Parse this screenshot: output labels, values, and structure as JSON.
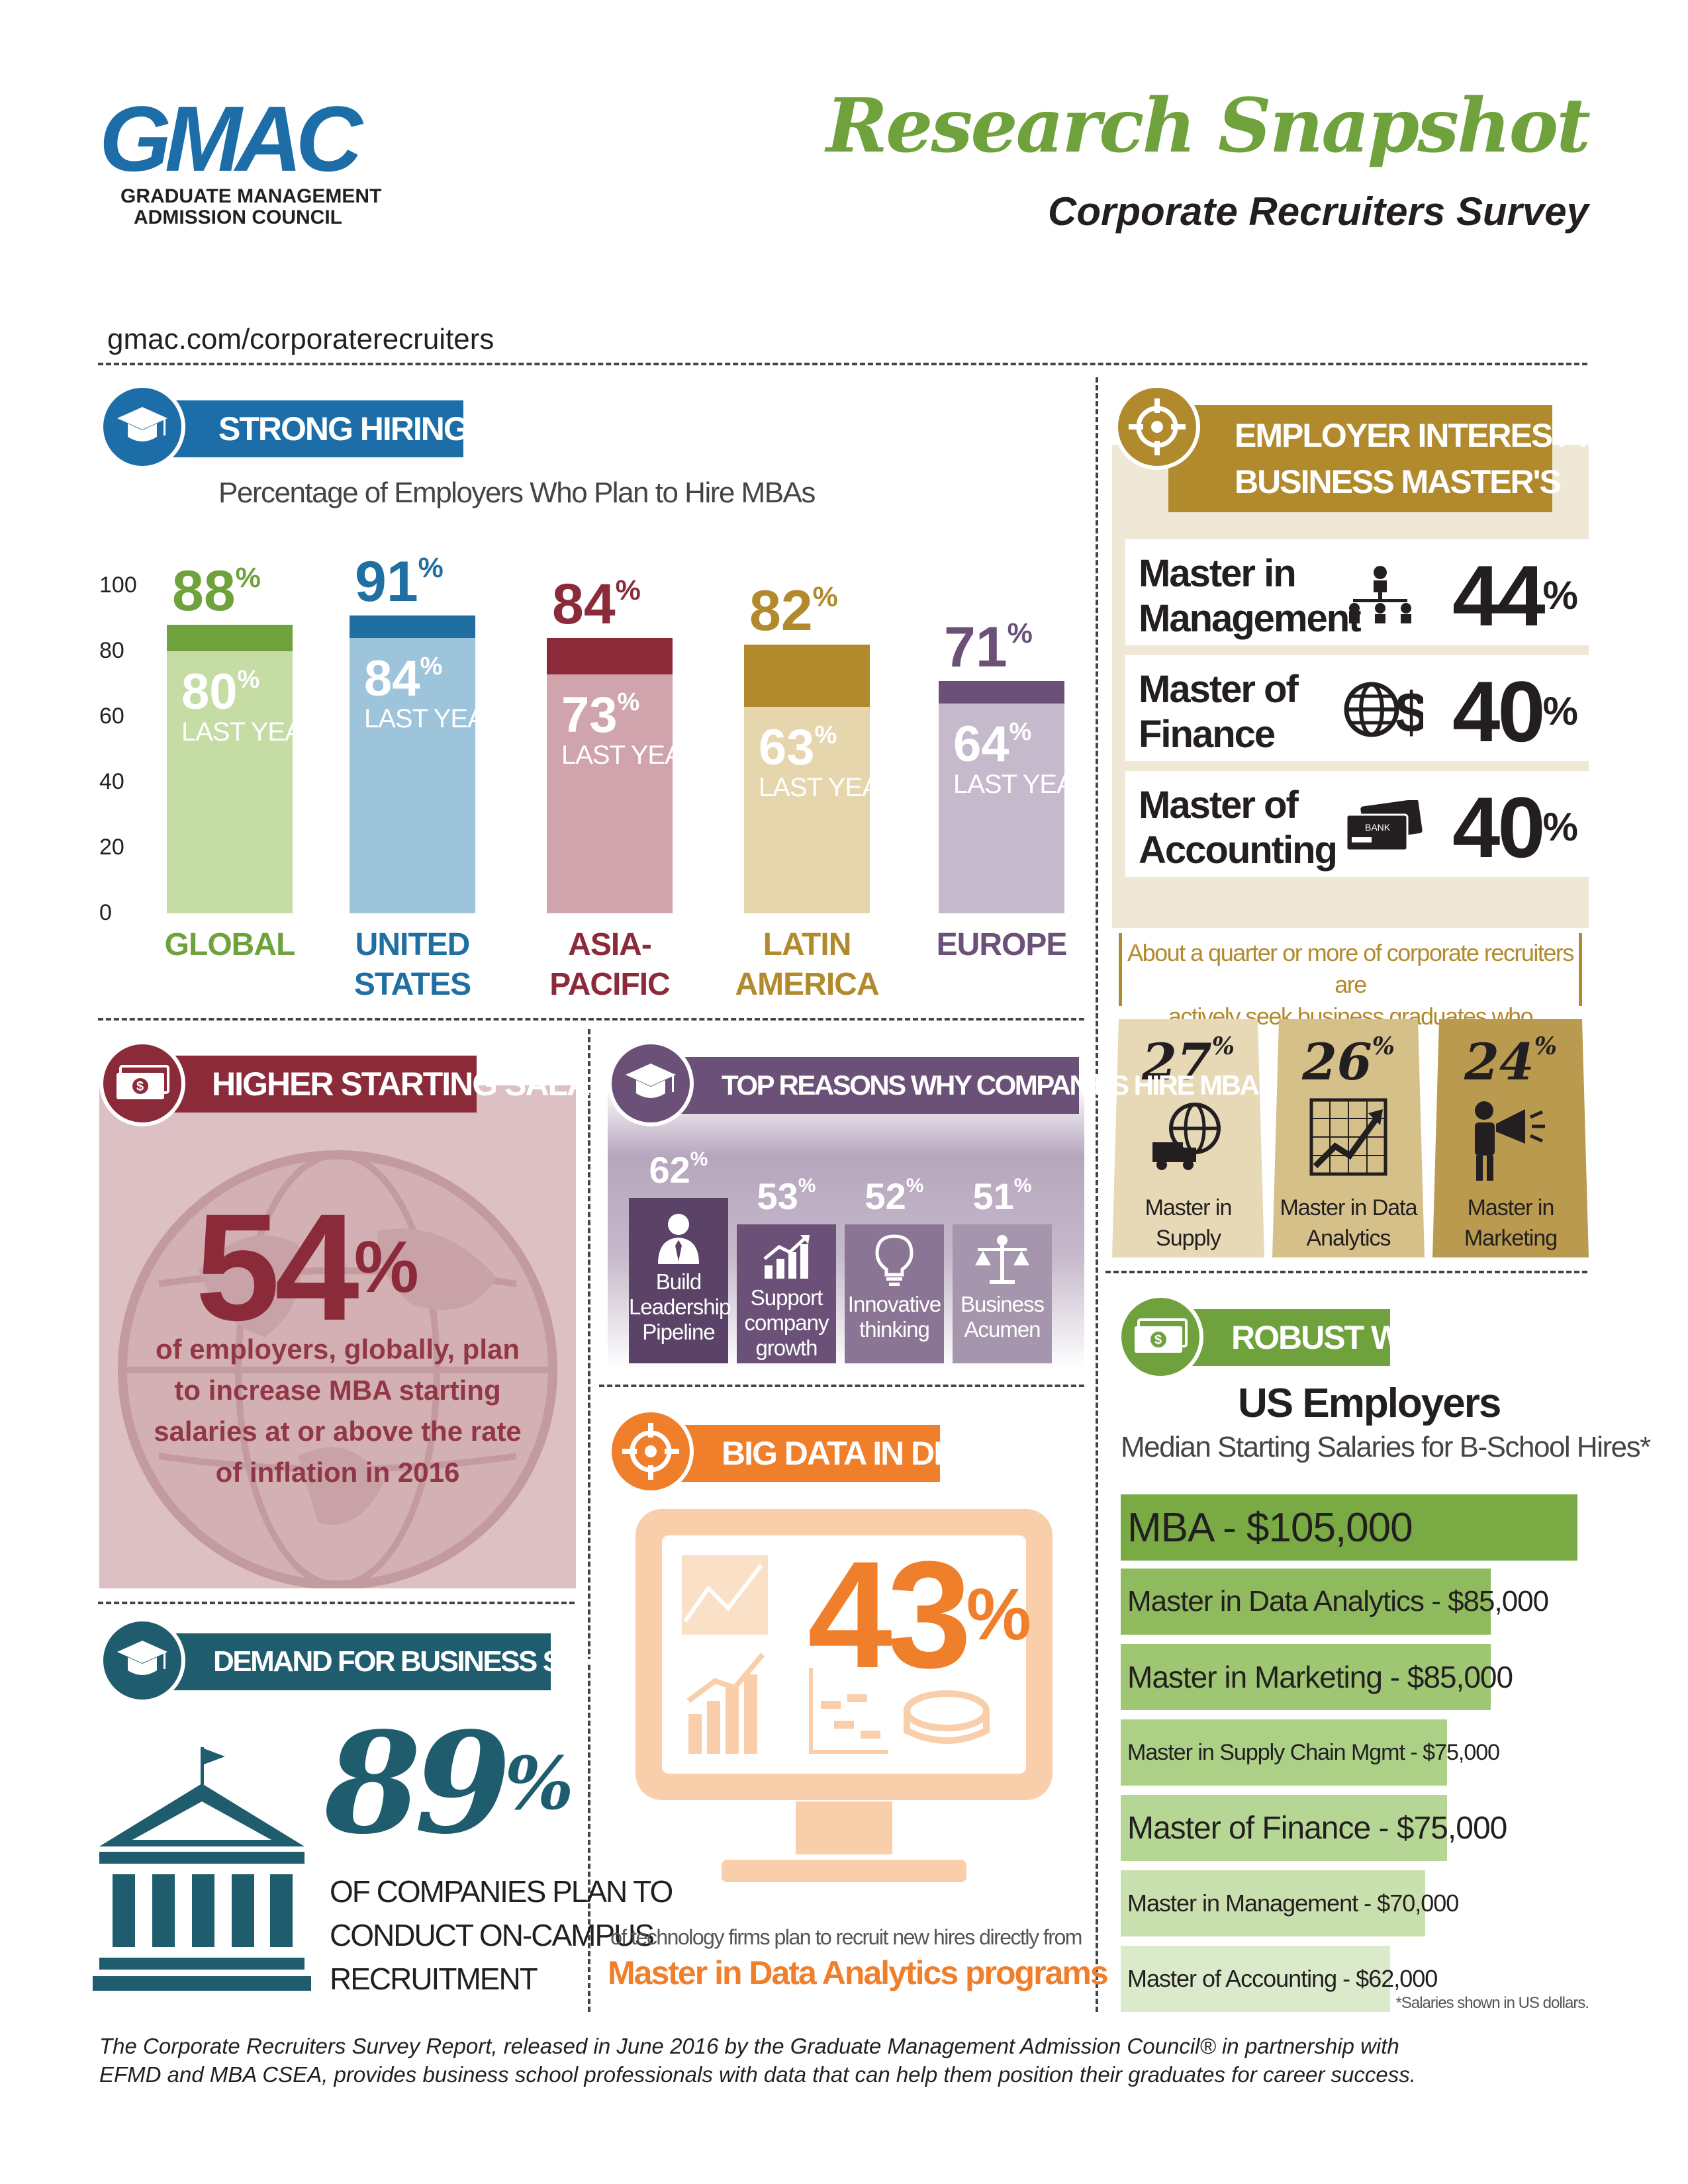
{
  "header": {
    "logo_text": "GMAC",
    "logo_sub1": "GRADUATE MANAGEMENT",
    "logo_sub2": "ADMISSION COUNCIL",
    "title": "Research Snapshot",
    "subtitle": "Corporate Recruiters Survey",
    "url": "gmac.com/corporaterecruiters"
  },
  "hiring": {
    "banner": "STRONG HIRING DEMAND",
    "subtitle": "Percentage of Employers Who Plan to Hire MBAs",
    "yticks": [
      "100",
      "80",
      "60",
      "40",
      "20",
      "0"
    ],
    "last_year_label": "LAST YEAR",
    "percent_sign": "%",
    "regions": [
      {
        "name_1": "GLOBAL",
        "name_2": "",
        "value": "88",
        "last": "80",
        "value_n": 88,
        "last_n": 80,
        "color": "#6fa23c",
        "light": "#c5dca5"
      },
      {
        "name_1": "UNITED",
        "name_2": "STATES",
        "value": "91",
        "last": "84",
        "value_n": 91,
        "last_n": 84,
        "color": "#1f6fa3",
        "light": "#9dc4da"
      },
      {
        "name_1": "ASIA-",
        "name_2": "PACIFIC",
        "value": "84",
        "last": "73",
        "value_n": 84,
        "last_n": 73,
        "color": "#8b2b3a",
        "light": "#cfa4ac"
      },
      {
        "name_1": "LATIN",
        "name_2": "AMERICA",
        "value": "82",
        "last": "63",
        "value_n": 82,
        "last_n": 63,
        "color": "#b28a2e",
        "light": "#e6d6ad"
      },
      {
        "name_1": "EUROPE",
        "name_2": "",
        "value": "71",
        "last": "64",
        "value_n": 71,
        "last_n": 64,
        "color": "#6b5177",
        "light": "#c5bacc"
      }
    ]
  },
  "nonmba": {
    "banner_1": "EMPLOYER INTEREST IN NON-MBA",
    "banner_2": "BUSINESS MASTER'S",
    "rows": [
      {
        "label_1": "Master in",
        "label_2": "Management",
        "value": "44",
        "icon": "org-chart-icon"
      },
      {
        "label_1": "Master of",
        "label_2": "Finance",
        "value": "40",
        "icon": "globe-dollar-icon"
      },
      {
        "label_1": "Master of",
        "label_2": "Accounting",
        "value": "40",
        "icon": "bank-card-icon",
        "card_text": "BANK"
      }
    ],
    "note_1": "About a quarter or more of corporate recruiters are",
    "note_2": "actively seek business graduates who completed",
    "tiles": [
      {
        "value": "27",
        "label_1": "Master in",
        "label_2": "Supply",
        "icon": "globe-truck-icon"
      },
      {
        "value": "26",
        "label_1": "Master in Data",
        "label_2": "Analytics",
        "icon": "growth-chart-icon"
      },
      {
        "value": "24",
        "label_1": "Master in",
        "label_2": "Marketing",
        "icon": "megaphone-icon"
      }
    ]
  },
  "salaries": {
    "banner": "HIGHER STARTING SALARIES",
    "value": "54",
    "text_1": "of employers, globally, plan",
    "text_2": "to increase MBA starting",
    "text_3": "salaries at or above the rate",
    "text_4": "of inflation in 2016"
  },
  "reasons": {
    "banner": "TOP REASONS WHY COMPANIES HIRE MBAs",
    "items": [
      {
        "value": "62",
        "label_1": "Build",
        "label_2": "Leadership",
        "label_3": "Pipeline",
        "icon": "leader-icon"
      },
      {
        "value": "53",
        "label_1": "Support",
        "label_2": "company",
        "label_3": "growth",
        "icon": "growth-icon"
      },
      {
        "value": "52",
        "label_1": "Innovative",
        "label_2": "thinking",
        "label_3": "",
        "icon": "lightbulb-icon"
      },
      {
        "value": "51",
        "label_1": "Business",
        "label_2": "Acumen",
        "label_3": "",
        "icon": "scales-icon"
      }
    ]
  },
  "talent": {
    "banner": "DEMAND FOR BUSINESS SCHOOL TALENT",
    "value": "89",
    "text_1": "OF COMPANIES PLAN TO",
    "text_2": "CONDUCT ON-CAMPUS",
    "text_3": "RECRUITMENT"
  },
  "bigdata": {
    "banner": "BIG DATA IN DEMAND",
    "value": "43",
    "text_1": "of technology firms plan to recruit new hires directly from",
    "text_2": "Master in Data Analytics programs"
  },
  "wages": {
    "banner": "ROBUST WAGES",
    "title": "US Employers",
    "subtitle": "Median Starting Salaries for B-School Hires*",
    "footnote": "*Salaries shown in US dollars.",
    "items": [
      {
        "label": "MBA - $105,000",
        "value": 105000,
        "color": "#7aaa44",
        "size": 62
      },
      {
        "label": "Master in Data Analytics - $85,000",
        "value": 85000,
        "color": "#8fbb5e",
        "size": 44
      },
      {
        "label": "Master in Marketing - $85,000",
        "value": 85000,
        "color": "#9fc672",
        "size": 46
      },
      {
        "label": "Master in Supply Chain Mgmt - $75,000",
        "value": 75000,
        "color": "#acd086",
        "size": 34
      },
      {
        "label": "Master of Finance - $75,000",
        "value": 75000,
        "color": "#b6d696",
        "size": 48
      },
      {
        "label": "Master in Management - $70,000",
        "value": 70000,
        "color": "#c8e0ae",
        "size": 36
      },
      {
        "label": "Master of Accounting - $62,000",
        "value": 62000,
        "color": "#dbeacb",
        "size": 36
      }
    ]
  },
  "footer": {
    "line_1": "The Corporate Recruiters Survey Report, released in June 2016 by the Graduate Management Admission Council® in partnership with",
    "line_2": "EFMD and MBA CSEA, provides business school professionals with data that can help them position their graduates for career success."
  }
}
